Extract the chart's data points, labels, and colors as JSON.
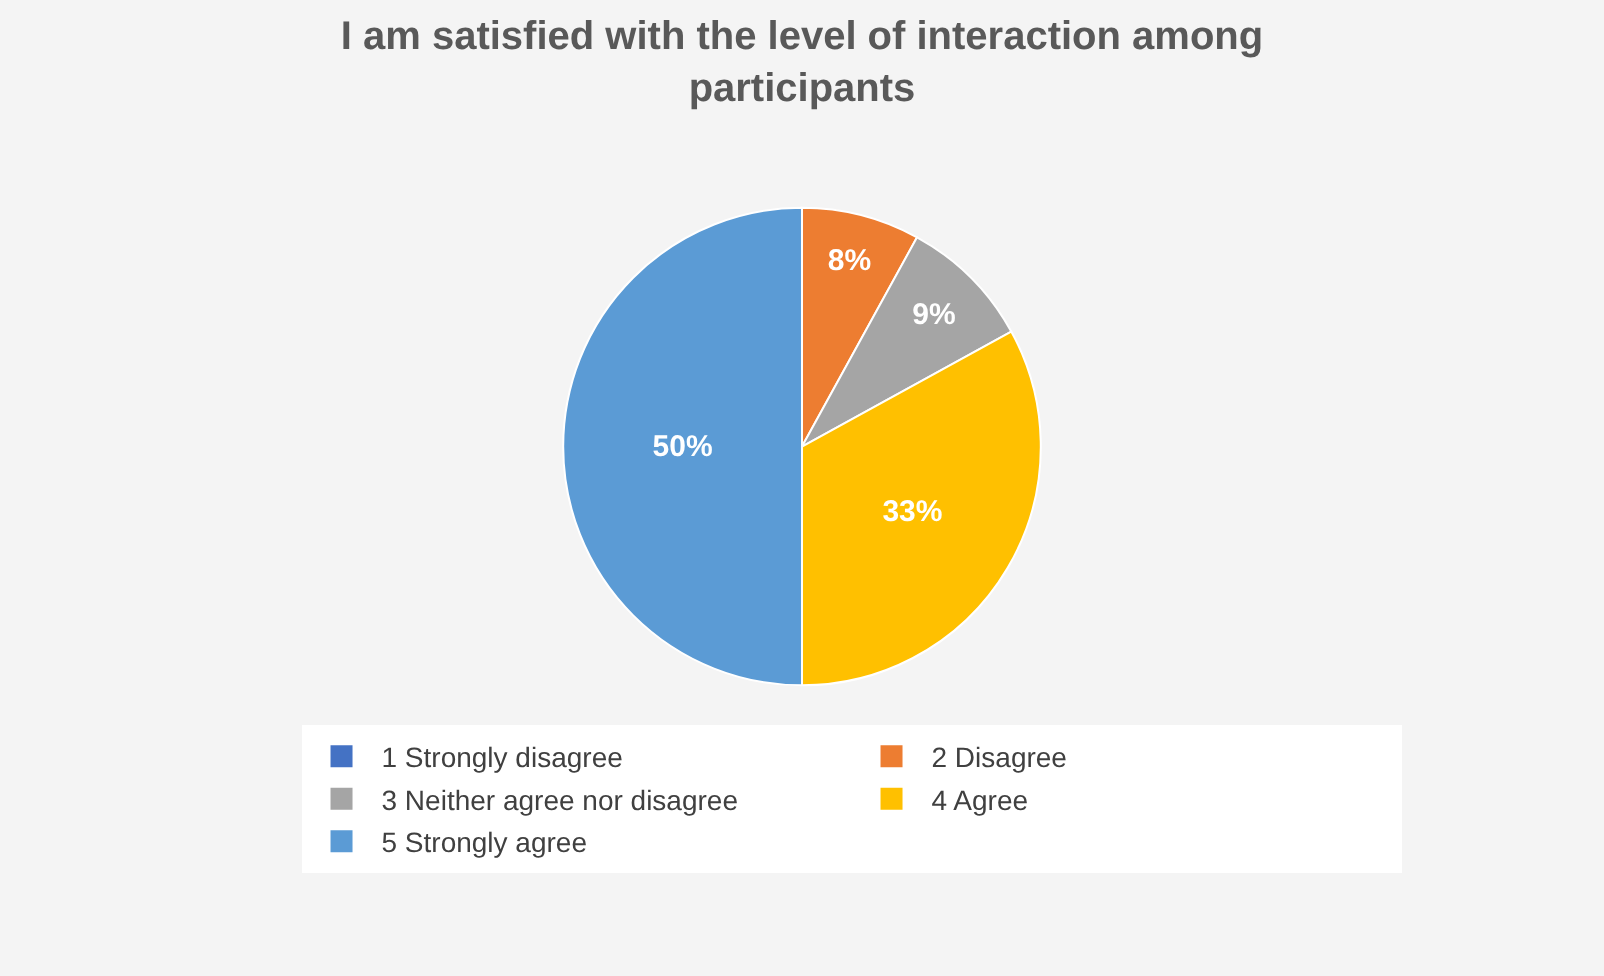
{
  "chart_data": {
    "type": "pie",
    "title": "I am satisfied with the level of interaction among participants",
    "categories": [
      "1 Strongly disagree",
      "2 Disagree",
      "3 Neither agree nor disagree",
      "4 Agree",
      "5 Strongly agree"
    ],
    "values": [
      0,
      8,
      9,
      33,
      50
    ],
    "colors": [
      "#4472c4",
      "#ed7d31",
      "#a5a5a5",
      "#ffc000",
      "#5b9bd5"
    ],
    "value_labels": [
      null,
      "8%",
      "9%",
      "33%",
      "50%"
    ],
    "legend": "bottom"
  }
}
